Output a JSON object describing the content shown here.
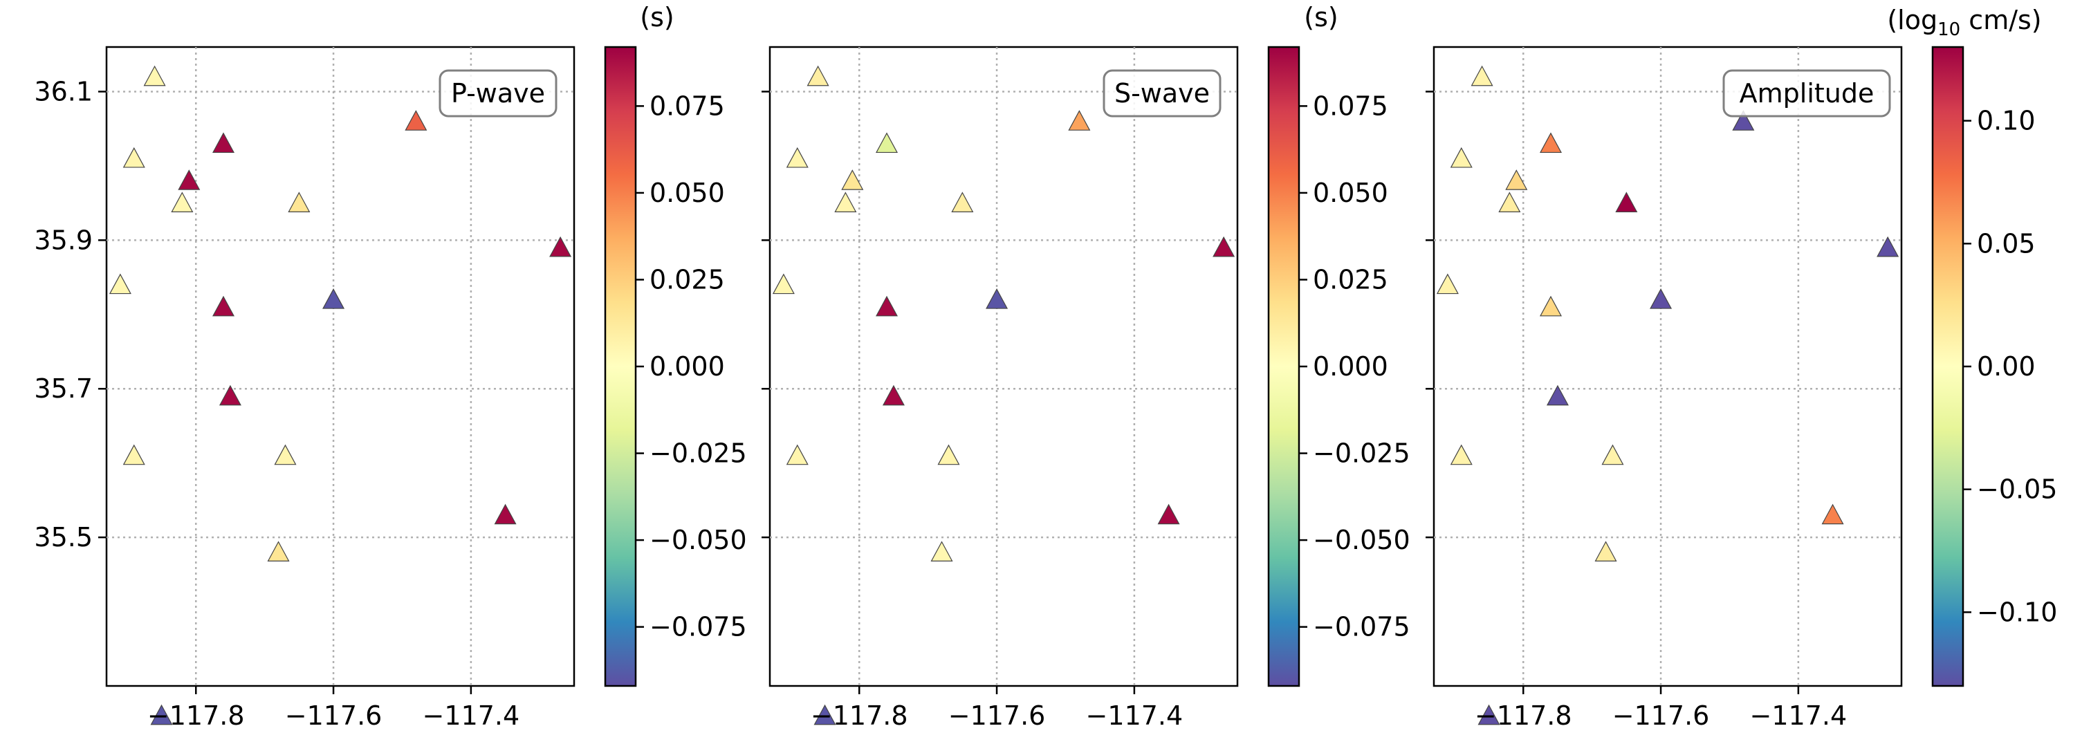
{
  "chart_data": [
    {
      "type": "scatter",
      "title": "P-wave",
      "colorbar_label": "(s)",
      "marker": "triangle",
      "colormap": "Spectral_r",
      "xlim": [
        -117.93,
        -117.25
      ],
      "ylim": [
        35.3,
        36.16
      ],
      "xticks": [
        -117.8,
        -117.6,
        -117.4
      ],
      "xtick_labels": [
        "−117.8",
        "−117.6",
        "−117.4"
      ],
      "yticks": [
        35.5,
        35.7,
        35.9,
        36.1
      ],
      "ytick_labels": [
        "35.5",
        "35.7",
        "35.9",
        "36.1"
      ],
      "clim": [
        -0.092,
        0.092
      ],
      "cbar_ticks": [
        -0.075,
        -0.05,
        -0.025,
        0.0,
        0.025,
        0.05,
        0.075
      ],
      "cbar_tick_labels": [
        "−0.075",
        "−0.050",
        "−0.025",
        "0.000",
        "0.025",
        "0.050",
        "0.075"
      ],
      "grid": true,
      "legend_position": "top-right",
      "points": [
        {
          "lon": -117.86,
          "lat": 36.12,
          "value": 0.005
        },
        {
          "lon": -117.89,
          "lat": 36.01,
          "value": 0.006
        },
        {
          "lon": -117.82,
          "lat": 35.95,
          "value": 0.005
        },
        {
          "lon": -117.81,
          "lat": 35.98,
          "value": 0.09
        },
        {
          "lon": -117.76,
          "lat": 36.03,
          "value": 0.09
        },
        {
          "lon": -117.65,
          "lat": 35.95,
          "value": 0.015
        },
        {
          "lon": -117.48,
          "lat": 36.06,
          "value": 0.06
        },
        {
          "lon": -117.91,
          "lat": 35.84,
          "value": 0.005
        },
        {
          "lon": -117.76,
          "lat": 35.81,
          "value": 0.09
        },
        {
          "lon": -117.6,
          "lat": 35.82,
          "value": -0.09
        },
        {
          "lon": -117.27,
          "lat": 35.89,
          "value": 0.09
        },
        {
          "lon": -117.75,
          "lat": 35.69,
          "value": 0.09
        },
        {
          "lon": -117.89,
          "lat": 35.61,
          "value": 0.006
        },
        {
          "lon": -117.67,
          "lat": 35.61,
          "value": 0.006
        },
        {
          "lon": -117.68,
          "lat": 35.48,
          "value": 0.015
        },
        {
          "lon": -117.35,
          "lat": 35.53,
          "value": 0.09
        },
        {
          "lon": -117.85,
          "lat": 35.26,
          "value": -0.09
        }
      ]
    },
    {
      "type": "scatter",
      "title": "S-wave",
      "colorbar_label": "(s)",
      "marker": "triangle",
      "colormap": "Spectral_r",
      "xlim": [
        -117.93,
        -117.25
      ],
      "ylim": [
        35.3,
        36.16
      ],
      "xticks": [
        -117.8,
        -117.6,
        -117.4
      ],
      "xtick_labels": [
        "−117.8",
        "−117.6",
        "−117.4"
      ],
      "yticks": [
        35.5,
        35.7,
        35.9,
        36.1
      ],
      "ytick_labels": [
        "",
        "",
        "",
        ""
      ],
      "clim": [
        -0.092,
        0.092
      ],
      "cbar_ticks": [
        -0.075,
        -0.05,
        -0.025,
        0.0,
        0.025,
        0.05,
        0.075
      ],
      "cbar_tick_labels": [
        "−0.075",
        "−0.050",
        "−0.025",
        "0.000",
        "0.025",
        "0.050",
        "0.075"
      ],
      "grid": true,
      "legend_position": "top-right",
      "points": [
        {
          "lon": -117.86,
          "lat": 36.12,
          "value": 0.01
        },
        {
          "lon": -117.89,
          "lat": 36.01,
          "value": 0.006
        },
        {
          "lon": -117.82,
          "lat": 35.95,
          "value": 0.006
        },
        {
          "lon": -117.81,
          "lat": 35.98,
          "value": 0.015
        },
        {
          "lon": -117.76,
          "lat": 36.03,
          "value": -0.02
        },
        {
          "lon": -117.65,
          "lat": 35.95,
          "value": 0.01
        },
        {
          "lon": -117.48,
          "lat": 36.06,
          "value": 0.04
        },
        {
          "lon": -117.91,
          "lat": 35.84,
          "value": 0.005
        },
        {
          "lon": -117.76,
          "lat": 35.81,
          "value": 0.09
        },
        {
          "lon": -117.6,
          "lat": 35.82,
          "value": -0.09
        },
        {
          "lon": -117.27,
          "lat": 35.89,
          "value": 0.09
        },
        {
          "lon": -117.75,
          "lat": 35.69,
          "value": 0.09
        },
        {
          "lon": -117.89,
          "lat": 35.61,
          "value": 0.006
        },
        {
          "lon": -117.67,
          "lat": 35.61,
          "value": 0.006
        },
        {
          "lon": -117.68,
          "lat": 35.48,
          "value": 0.005
        },
        {
          "lon": -117.35,
          "lat": 35.53,
          "value": 0.09
        },
        {
          "lon": -117.85,
          "lat": 35.26,
          "value": -0.09
        }
      ]
    },
    {
      "type": "scatter",
      "title": "Amplitude",
      "colorbar_label_prefix": "(log",
      "colorbar_label_sub": "10",
      "colorbar_label_suffix": " cm/s)",
      "marker": "triangle",
      "colormap": "Spectral_r",
      "xlim": [
        -117.93,
        -117.25
      ],
      "ylim": [
        35.3,
        36.16
      ],
      "xticks": [
        -117.8,
        -117.6,
        -117.4
      ],
      "xtick_labels": [
        "−117.8",
        "−117.6",
        "−117.4"
      ],
      "yticks": [
        35.5,
        35.7,
        35.9,
        36.1
      ],
      "ytick_labels": [
        "",
        "",
        "",
        ""
      ],
      "clim": [
        -0.13,
        0.13
      ],
      "cbar_ticks": [
        -0.1,
        -0.05,
        0.0,
        0.05,
        0.1
      ],
      "cbar_tick_labels": [
        "−0.10",
        "−0.05",
        "0.00",
        "0.05",
        "0.10"
      ],
      "grid": true,
      "legend_position": "top-right",
      "points": [
        {
          "lon": -117.86,
          "lat": 36.12,
          "value": 0.01
        },
        {
          "lon": -117.89,
          "lat": 36.01,
          "value": 0.01
        },
        {
          "lon": -117.82,
          "lat": 35.95,
          "value": 0.015
        },
        {
          "lon": -117.81,
          "lat": 35.98,
          "value": 0.03
        },
        {
          "lon": -117.76,
          "lat": 36.03,
          "value": 0.07
        },
        {
          "lon": -117.65,
          "lat": 35.95,
          "value": 0.13
        },
        {
          "lon": -117.48,
          "lat": 36.06,
          "value": -0.13
        },
        {
          "lon": -117.91,
          "lat": 35.84,
          "value": 0.01
        },
        {
          "lon": -117.76,
          "lat": 35.81,
          "value": 0.03
        },
        {
          "lon": -117.6,
          "lat": 35.82,
          "value": -0.13
        },
        {
          "lon": -117.27,
          "lat": 35.89,
          "value": -0.13
        },
        {
          "lon": -117.75,
          "lat": 35.69,
          "value": -0.13
        },
        {
          "lon": -117.89,
          "lat": 35.61,
          "value": 0.01
        },
        {
          "lon": -117.67,
          "lat": 35.61,
          "value": 0.01
        },
        {
          "lon": -117.68,
          "lat": 35.48,
          "value": 0.015
        },
        {
          "lon": -117.35,
          "lat": 35.53,
          "value": 0.07
        },
        {
          "lon": -117.85,
          "lat": 35.26,
          "value": -0.13
        }
      ]
    }
  ],
  "colors": {
    "axis": "#000000",
    "grid": "#b0b0b0",
    "legend_border": "#808080",
    "marker_edge": "#444444"
  }
}
